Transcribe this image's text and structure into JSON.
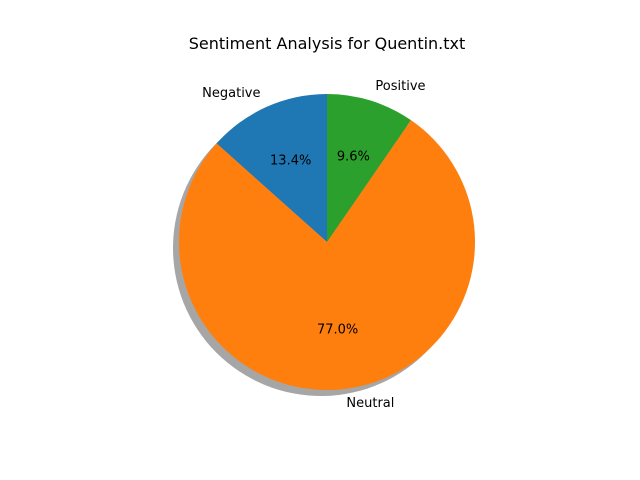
{
  "chart_data": {
    "type": "pie",
    "title": "Sentiment Analysis for Quentin.txt",
    "categories": [
      "Negative",
      "Neutral",
      "Positive"
    ],
    "values": [
      13.4,
      77.0,
      9.6
    ],
    "value_labels": [
      "13.4%",
      "77.0%",
      "9.6%"
    ],
    "colors": [
      "#1f77b4",
      "#ff7f0e",
      "#2ca02c"
    ],
    "shadow": true,
    "start_angle_deg": 90,
    "direction": "counterclockwise",
    "legend": "none"
  }
}
